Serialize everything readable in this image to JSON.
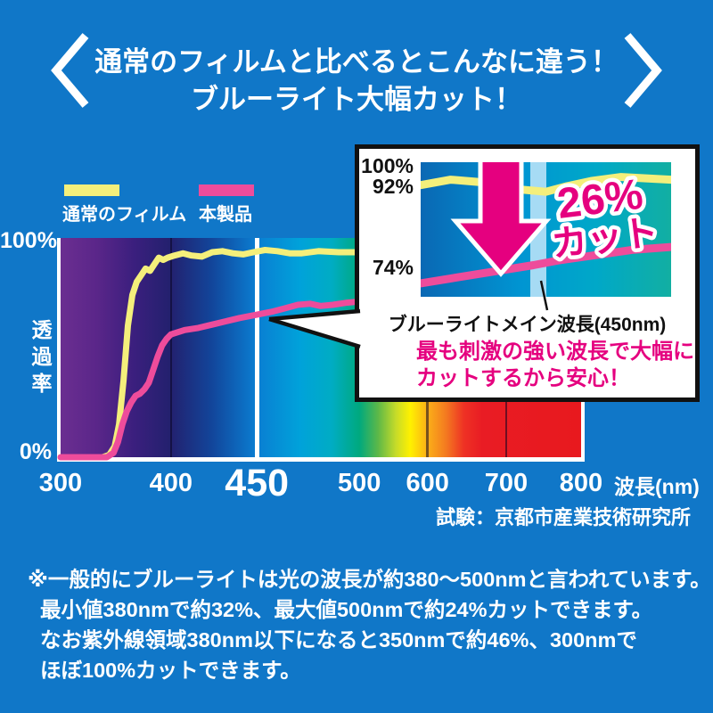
{
  "colors": {
    "background": "#1077C8",
    "white": "#FFFFFF",
    "normal_film_yellow": "#F4EF7B",
    "product_pink": "#EE4C9B",
    "accent_magenta": "#E5007F",
    "ink_black": "#111111",
    "band_light_blue": "#A6DBF4"
  },
  "header": {
    "line1": "通常のフィルムと比べるとこんなに違う！",
    "line2": "ブルーライト大幅カット！"
  },
  "legend": [
    {
      "label": "通常のフィルム",
      "color": "#F4EF7B"
    },
    {
      "label": "本製品",
      "color": "#EE4C9B"
    }
  ],
  "source_note": "試験：京都市産業技術研究所",
  "footnote": {
    "lines": [
      "※一般的にブルーライトは光の波長が約380〜500nmと言われています。",
      "最小値380nmで約32%、最大値500nmで約24%カットできます。",
      "なお紫外線領域380nm以下になると350nmで約46%、300nmで",
      "ほぼ100%カットできます。"
    ]
  },
  "callout": {
    "cut_value": "26%",
    "cut_word": "カット",
    "wavelength_label": "ブルーライトメイン波長(450nm)",
    "note_line1": "最も刺激の強い波長で大幅に",
    "note_line2": "カットするから安心！",
    "arrow_color": "#E5007F",
    "band_color": "#A6DBF4"
  },
  "chart_data": [
    {
      "id": "main-transmission-chart",
      "type": "line",
      "title": "",
      "xlabel": "波長(nm)",
      "ylabel": "透過率",
      "ylim": [
        0,
        100
      ],
      "y_tick_labels": [
        "100%",
        "0%"
      ],
      "x_ticks": [
        {
          "label": "300",
          "nm": 300,
          "f": 0.0,
          "line": null,
          "emphasis": false
        },
        {
          "label": "400",
          "nm": 400,
          "f": 0.212,
          "line": "dark",
          "emphasis": false
        },
        {
          "label": "450",
          "nm": 450,
          "f": 0.377,
          "line": "white",
          "emphasis": true
        },
        {
          "label": "500",
          "nm": 500,
          "f": 0.574,
          "line": null,
          "emphasis": false
        },
        {
          "label": "600",
          "nm": 600,
          "f": 0.705,
          "line": "dark",
          "emphasis": false
        },
        {
          "label": "700",
          "nm": 700,
          "f": 0.856,
          "line": "dark",
          "emphasis": false
        },
        {
          "label": "800",
          "nm": 800,
          "f": 1.0,
          "line": null,
          "emphasis": false
        }
      ],
      "spectrum_gradient": [
        [
          0,
          "#6B2E91"
        ],
        [
          0.07,
          "#5A2689"
        ],
        [
          0.14,
          "#3B1F7E"
        ],
        [
          0.21,
          "#23206E"
        ],
        [
          0.29,
          "#12459A"
        ],
        [
          0.377,
          "#0A7ED2"
        ],
        [
          0.46,
          "#00A2DA"
        ],
        [
          0.52,
          "#00ACC4"
        ],
        [
          0.574,
          "#00A97E"
        ],
        [
          0.61,
          "#5DB848"
        ],
        [
          0.645,
          "#C8DC28"
        ],
        [
          0.672,
          "#FFF100"
        ],
        [
          0.705,
          "#FBAF18"
        ],
        [
          0.74,
          "#F47B20"
        ],
        [
          0.775,
          "#EE3124"
        ],
        [
          0.81,
          "#E91C24"
        ],
        [
          1,
          "#E8191E"
        ]
      ],
      "series": [
        {
          "name": "通常のフィルム",
          "color": "#F4EF7B",
          "points": [
            [
              300,
              0
            ],
            [
              338,
              0
            ],
            [
              344,
              1
            ],
            [
              349,
              5
            ],
            [
              353,
              15
            ],
            [
              357,
              35
            ],
            [
              361,
              60
            ],
            [
              365,
              74
            ],
            [
              369,
              80
            ],
            [
              373,
              83
            ],
            [
              377,
              86
            ],
            [
              381,
              85
            ],
            [
              385,
              88
            ],
            [
              389,
              91
            ],
            [
              393,
              90
            ],
            [
              397,
              91
            ],
            [
              402,
              92
            ],
            [
              407,
              93
            ],
            [
              412,
              92
            ],
            [
              418,
              91.5
            ],
            [
              424,
              93.5
            ],
            [
              430,
              94
            ],
            [
              436,
              93
            ],
            [
              442,
              92.5
            ],
            [
              448,
              93.5
            ],
            [
              454,
              94.5
            ],
            [
              460,
              94
            ],
            [
              466,
              93
            ],
            [
              472,
              93
            ],
            [
              480,
              94
            ],
            [
              490,
              93.5
            ],
            [
              500,
              93.5
            ]
          ]
        },
        {
          "name": "本製品",
          "color": "#EE4C9B",
          "points": [
            [
              300,
              0
            ],
            [
              342,
              0
            ],
            [
              348,
              2
            ],
            [
              352,
              7
            ],
            [
              356,
              15
            ],
            [
              360,
              21
            ],
            [
              364,
              25
            ],
            [
              368,
              28
            ],
            [
              372,
              29
            ],
            [
              376,
              31
            ],
            [
              380,
              34
            ],
            [
              384,
              40
            ],
            [
              388,
              46
            ],
            [
              392,
              51
            ],
            [
              396,
              54
            ],
            [
              400,
              56
            ],
            [
              408,
              58
            ],
            [
              416,
              59
            ],
            [
              424,
              60.5
            ],
            [
              432,
              62
            ],
            [
              440,
              63.5
            ],
            [
              450,
              65
            ],
            [
              458,
              66.5
            ],
            [
              464,
              68
            ],
            [
              470,
              69.5
            ],
            [
              476,
              70
            ],
            [
              481,
              69
            ],
            [
              487,
              69.5
            ],
            [
              494,
              70.5
            ],
            [
              500,
              71
            ]
          ]
        }
      ]
    },
    {
      "id": "inset-450nm-zoom",
      "type": "line",
      "y_labels": [
        "100%",
        "92%",
        "74%"
      ],
      "mini_gradient": [
        [
          0,
          "#0A68B4"
        ],
        [
          0.4,
          "#0095D2"
        ],
        [
          0.7,
          "#00A8C8"
        ],
        [
          1,
          "#12AFA2"
        ]
      ],
      "series": [
        {
          "name": "通常のフィルム",
          "color": "#F4EF7B",
          "points_norm": [
            [
              0,
              0.17
            ],
            [
              0.12,
              0.13
            ],
            [
              0.25,
              0.15
            ],
            [
              0.38,
              0.2
            ],
            [
              0.5,
              0.22
            ],
            [
              0.58,
              0.18
            ],
            [
              0.68,
              0.14
            ],
            [
              0.8,
              0.11
            ],
            [
              0.9,
              0.12
            ],
            [
              1,
              0.13
            ]
          ]
        },
        {
          "name": "本製品",
          "color": "#EE4C9B",
          "points_norm": [
            [
              0,
              0.9
            ],
            [
              0.15,
              0.855
            ],
            [
              0.3,
              0.81
            ],
            [
              0.45,
              0.765
            ],
            [
              0.55,
              0.73
            ],
            [
              0.7,
              0.69
            ],
            [
              0.85,
              0.65
            ],
            [
              1,
              0.63
            ]
          ]
        }
      ]
    }
  ]
}
